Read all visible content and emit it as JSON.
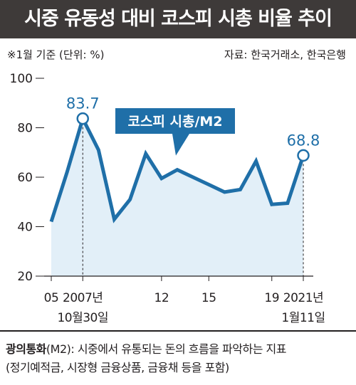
{
  "header": {
    "title": "시중 유동성 대비 코스피 시총 비율 추이"
  },
  "notes": {
    "unit": "※1월 기준 (단위: %)",
    "source": "자료: 한국거래소, 한국은행"
  },
  "footer": {
    "term": "광의통화",
    "definition": "(M2): 시중에서 유통되는 돈의 흐름을 파악하는 지표",
    "detail": "(정기예적금, 시장형 금융상품, 금융채 등을 포함)"
  },
  "colors": {
    "line": "#1f6fa8",
    "fill": "#e2eff8",
    "title_bg": "#3e3a39",
    "label": "#1f6fa8",
    "text": "#231f20"
  },
  "chart_data": {
    "type": "area",
    "series": [
      {
        "name": "코스피 시총/M2",
        "x": [
          2005,
          2006,
          2007,
          2008,
          2009,
          2010,
          2011,
          2012,
          2013,
          2014,
          2015,
          2016,
          2017,
          2018,
          2019,
          2020,
          2021
        ],
        "values": [
          42,
          62,
          83.7,
          71,
          43,
          51,
          69.5,
          59.5,
          63,
          60,
          57,
          54,
          55,
          66.5,
          49,
          49.5,
          68.8
        ]
      }
    ],
    "ylim": [
      20,
      100
    ],
    "yticks": [
      20,
      40,
      60,
      80,
      100
    ],
    "xticks": [
      {
        "x": 2005,
        "label": "05"
      },
      {
        "x": 2007,
        "label": "2007년",
        "label2": "10월30일"
      },
      {
        "x": 2012,
        "label": "12"
      },
      {
        "x": 2015,
        "label": "15"
      },
      {
        "x": 2019,
        "label": "19"
      },
      {
        "x": 2021,
        "label": "2021년",
        "label2": "1월11일"
      }
    ],
    "annotations": [
      {
        "x": 2007,
        "y": 83.7,
        "text": "83.7"
      },
      {
        "x": 2021,
        "y": 68.8,
        "text": "68.8"
      }
    ],
    "callout": {
      "text": "코스피 시총/M2",
      "x": 2013,
      "y": 63
    },
    "grid": false
  }
}
